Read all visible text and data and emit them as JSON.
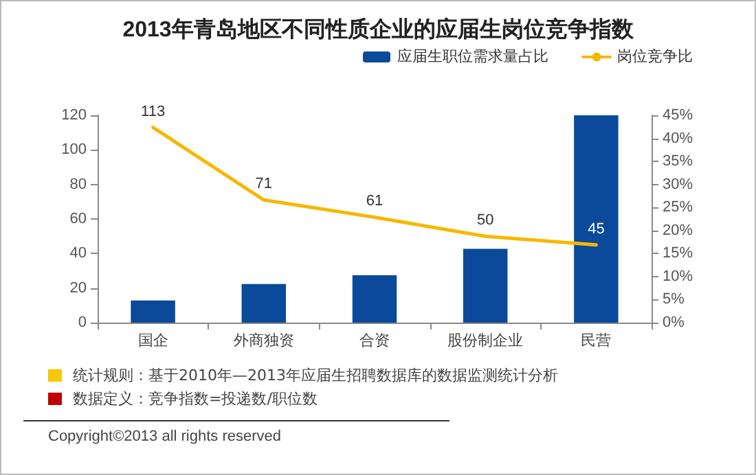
{
  "chart_data": {
    "type": "bar",
    "title": "2013年青岛地区不同性质企业的应届生岗位竞争指数",
    "categories": [
      "国企",
      "外商独资",
      "合资",
      "股份制企业",
      "民营"
    ],
    "series": [
      {
        "name": "应届生职位需求量占比",
        "axis": "y2",
        "color": "#0b4a9b",
        "values": [
          4.8,
          8.4,
          10.3,
          16,
          45
        ]
      },
      {
        "name": "岗位竞争比",
        "type": "line",
        "axis": "y",
        "color": "#f5b800",
        "values": [
          113,
          71,
          61,
          50,
          45
        ],
        "value_labels": [
          "113",
          "71",
          "61",
          "50",
          "45"
        ]
      }
    ],
    "ylim": [
      0,
      120
    ],
    "yticks": [
      0,
      20,
      40,
      60,
      80,
      100,
      120
    ],
    "y2lim": [
      0,
      45
    ],
    "y2ticks": [
      {
        "value": 0,
        "label": "0%"
      },
      {
        "value": 5,
        "label": "5%"
      },
      {
        "value": 10,
        "label": "10%"
      },
      {
        "value": 15,
        "label": "15%"
      },
      {
        "value": 20,
        "label": "20%"
      },
      {
        "value": 25,
        "label": "25%"
      },
      {
        "value": 30,
        "label": "30%"
      },
      {
        "value": 35,
        "label": "35%"
      },
      {
        "value": 40,
        "label": "40%"
      },
      {
        "value": 45,
        "label": "45%"
      }
    ],
    "grid": false,
    "legend": "top right",
    "marker": "none",
    "annotations": [
      "统计规则：基于2010年—2013年应届生招聘数据库的数据监测统计分析",
      "数据定义：竞争指数=投递数/职位数",
      "Copyright©2013 all rights reserved"
    ]
  }
}
